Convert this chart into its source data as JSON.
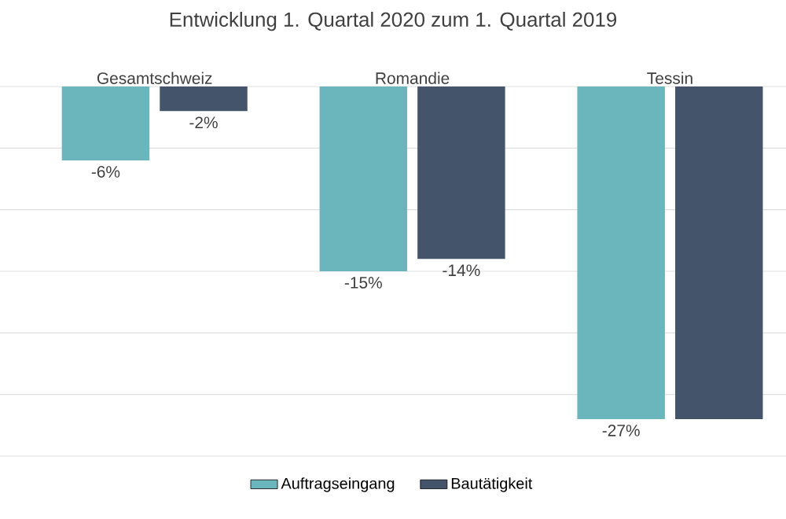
{
  "chart_data": {
    "type": "bar",
    "title": "Entwicklung 1. Quartal 2020 zum 1. Quartal 2019",
    "categories": [
      "Gesamtschweiz",
      "Romandie",
      "Tessin"
    ],
    "series": [
      {
        "name": "Auftragseingang",
        "color": "#6bb5bd",
        "values": [
          -6,
          -15,
          -27
        ],
        "value_labels": [
          "-6%",
          "-15%",
          "-27%"
        ]
      },
      {
        "name": "Bautätigkeit",
        "color": "#44546a",
        "values": [
          -2,
          -14,
          -27
        ],
        "value_labels": [
          "-2%",
          "-14%",
          null
        ]
      }
    ],
    "ylim": [
      -30,
      0
    ],
    "yticks": [
      {
        "value": -30,
        "label": null
      },
      {
        "value": -25,
        "label": null
      },
      {
        "value": -20,
        "label": null
      },
      {
        "value": -15,
        "label": null
      },
      {
        "value": -10,
        "label": null
      },
      {
        "value": -5,
        "label": null
      },
      {
        "value": 0,
        "label": null
      }
    ],
    "grid": "y",
    "legend": "bottom"
  }
}
